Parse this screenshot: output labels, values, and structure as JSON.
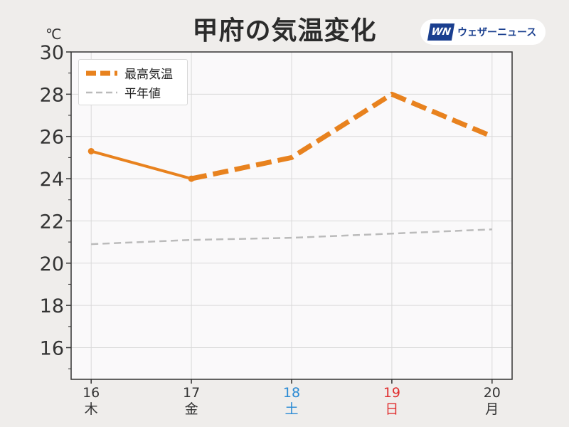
{
  "header": {
    "title": "甲府の気温変化",
    "brand_logo": "WN",
    "brand_name": "ウェザーニュース",
    "unit": "℃"
  },
  "chart_data": {
    "type": "line",
    "x": [
      16,
      17,
      18,
      19,
      20
    ],
    "tick_labels": [
      "16",
      "17",
      "18",
      "19",
      "20"
    ],
    "weekday_labels": [
      "木",
      "金",
      "土",
      "日",
      "月"
    ],
    "tick_colors": [
      "#333333",
      "#333333",
      "#2a8ad4",
      "#e03030",
      "#333333"
    ],
    "ylim": [
      14.5,
      30
    ],
    "yticks": [
      16,
      18,
      20,
      22,
      24,
      26,
      28,
      30
    ],
    "grid": true,
    "legend_position": "top-left",
    "series": [
      {
        "name": "最高気温",
        "color": "#e8821e",
        "values": [
          25.3,
          24.0,
          25.0,
          28.0,
          26.0
        ],
        "style": "solid for observed (16–17), dashed for forecast (17–20)"
      },
      {
        "name": "平年値",
        "color": "#bbbbbb",
        "values": [
          20.9,
          21.1,
          21.2,
          21.4,
          21.6
        ],
        "style": "dashed"
      }
    ]
  }
}
